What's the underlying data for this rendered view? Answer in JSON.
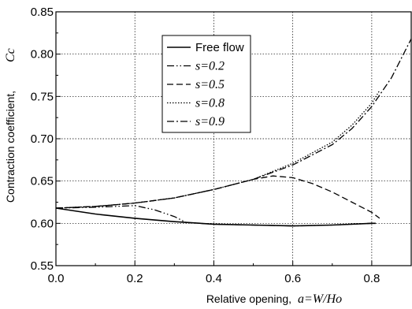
{
  "chart_data": {
    "type": "line",
    "xlabel": "Relative opening,",
    "xlabel_math": "a=W/Ho",
    "ylabel": "Contraction coefficient,",
    "ylabel_math": "Cc",
    "xlim": [
      0.0,
      0.9
    ],
    "ylim": [
      0.55,
      0.85
    ],
    "xticks": [
      "0.0",
      "0.2",
      "0.4",
      "0.6",
      "0.8"
    ],
    "yticks": [
      "0.55",
      "0.60",
      "0.65",
      "0.70",
      "0.75",
      "0.80",
      "0.85"
    ],
    "grid": true,
    "legend_position": "upper-center",
    "series": [
      {
        "name": "Free flow",
        "style": "solid",
        "x": [
          0.0,
          0.1,
          0.2,
          0.3,
          0.4,
          0.5,
          0.6,
          0.7,
          0.8,
          0.81
        ],
        "y": [
          0.618,
          0.611,
          0.606,
          0.602,
          0.599,
          0.598,
          0.597,
          0.598,
          0.6,
          0.6
        ]
      },
      {
        "name": "s=0.2",
        "style": "dashdotdot",
        "x": [
          0.0,
          0.1,
          0.2,
          0.25,
          0.3,
          0.33,
          0.4,
          0.5,
          0.6,
          0.7,
          0.8,
          0.81
        ],
        "y": [
          0.618,
          0.619,
          0.621,
          0.616,
          0.608,
          0.601,
          0.599,
          0.598,
          0.597,
          0.598,
          0.6,
          0.6
        ]
      },
      {
        "name": "s=0.5",
        "style": "dash",
        "x": [
          0.0,
          0.1,
          0.2,
          0.3,
          0.4,
          0.5,
          0.55,
          0.6,
          0.65,
          0.7,
          0.75,
          0.8,
          0.82
        ],
        "y": [
          0.618,
          0.62,
          0.624,
          0.63,
          0.64,
          0.652,
          0.656,
          0.654,
          0.647,
          0.637,
          0.625,
          0.613,
          0.606
        ]
      },
      {
        "name": "s=0.8",
        "style": "dot",
        "x": [
          0.0,
          0.1,
          0.2,
          0.3,
          0.4,
          0.5,
          0.6,
          0.7,
          0.75,
          0.8,
          0.82
        ],
        "y": [
          0.618,
          0.62,
          0.624,
          0.63,
          0.64,
          0.652,
          0.671,
          0.696,
          0.716,
          0.742,
          0.757
        ]
      },
      {
        "name": "s=0.9",
        "style": "dashdot",
        "x": [
          0.0,
          0.1,
          0.2,
          0.3,
          0.4,
          0.5,
          0.6,
          0.7,
          0.75,
          0.8,
          0.85,
          0.9
        ],
        "y": [
          0.618,
          0.62,
          0.624,
          0.63,
          0.64,
          0.652,
          0.669,
          0.693,
          0.712,
          0.738,
          0.772,
          0.818
        ]
      }
    ]
  }
}
